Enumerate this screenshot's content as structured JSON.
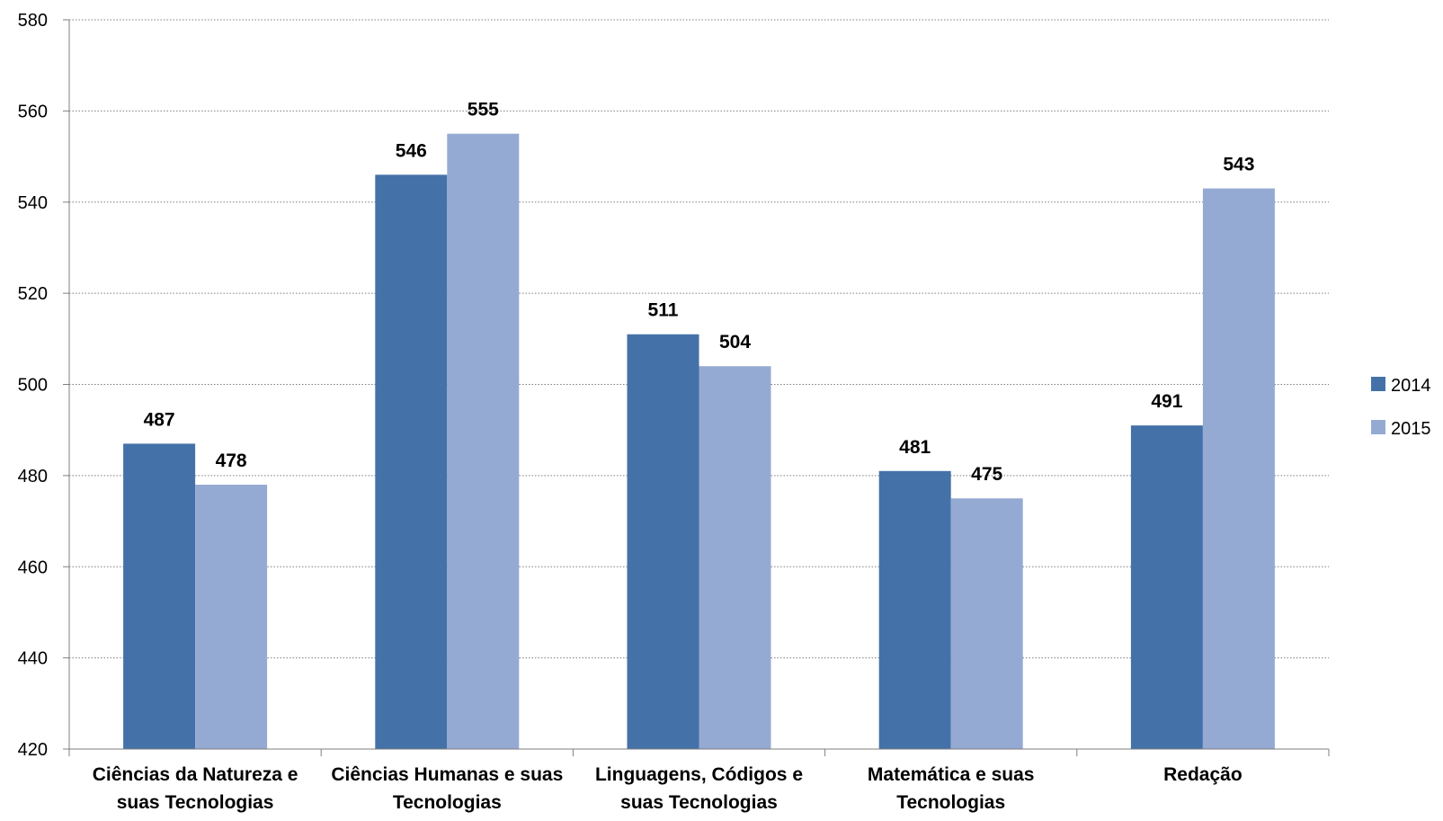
{
  "chart_data": {
    "type": "bar",
    "categories": [
      [
        "Ciências da Natureza e",
        "suas Tecnologias"
      ],
      [
        "Ciências Humanas e suas",
        "Tecnologias"
      ],
      [
        "Linguagens, Códigos e",
        "suas Tecnologias"
      ],
      [
        "Matemática e suas",
        "Tecnologias"
      ],
      [
        "Redação"
      ]
    ],
    "series": [
      {
        "name": "2014",
        "color": "#4472A8",
        "values": [
          487,
          546,
          511,
          481,
          491
        ]
      },
      {
        "name": "2015",
        "color": "#95AAD3",
        "values": [
          478,
          555,
          504,
          475,
          543
        ]
      }
    ],
    "ylim": [
      420,
      580
    ],
    "yticks": [
      420,
      440,
      460,
      480,
      500,
      520,
      540,
      560,
      580
    ],
    "grid": true,
    "legend_position": "right",
    "title": "",
    "xlabel": "",
    "ylabel": ""
  }
}
